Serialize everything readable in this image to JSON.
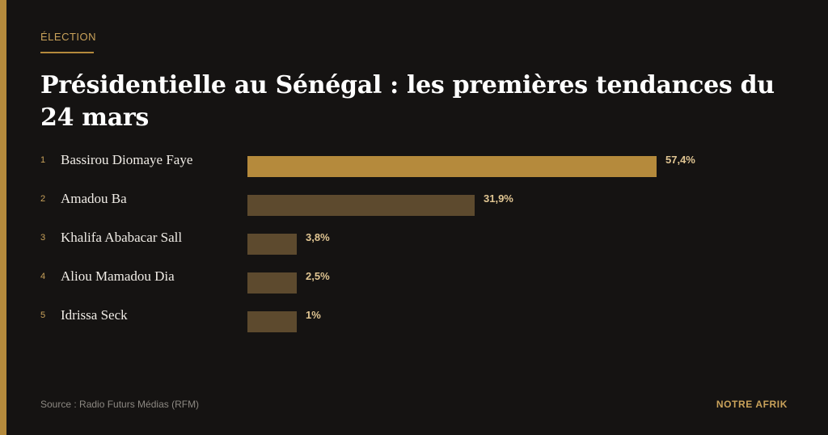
{
  "kicker": "ÉLECTION",
  "title": "Présidentielle au Sénégal : les premières tendances du 24 mars",
  "colors": {
    "accent": "#b58a3c",
    "leading_bar": "#b58a3c",
    "other_bars": "#5d4a2e",
    "background": "#151312"
  },
  "chart_data": {
    "type": "bar",
    "orientation": "horizontal",
    "title": "Présidentielle au Sénégal : les premières tendances du 24 mars",
    "ranks": [
      "1",
      "2",
      "3",
      "4",
      "5"
    ],
    "categories": [
      "Bassirou Diomaye Faye",
      "Amadou Ba",
      "Khalifa Ababacar Sall",
      "Aliou Mamadou Dia",
      "Idrissa Seck"
    ],
    "values": [
      57.4,
      31.9,
      3.8,
      2.5,
      1
    ],
    "value_labels": [
      "57,4%",
      "31,9%",
      "3,8%",
      "2,5%",
      "1%"
    ],
    "unit": "%",
    "xlim": [
      0,
      57.4
    ],
    "grid": false,
    "legend": "none"
  },
  "footer": {
    "source": "Source : Radio Futurs Médias (RFM)",
    "brand": "NOTRE AFRIK"
  }
}
